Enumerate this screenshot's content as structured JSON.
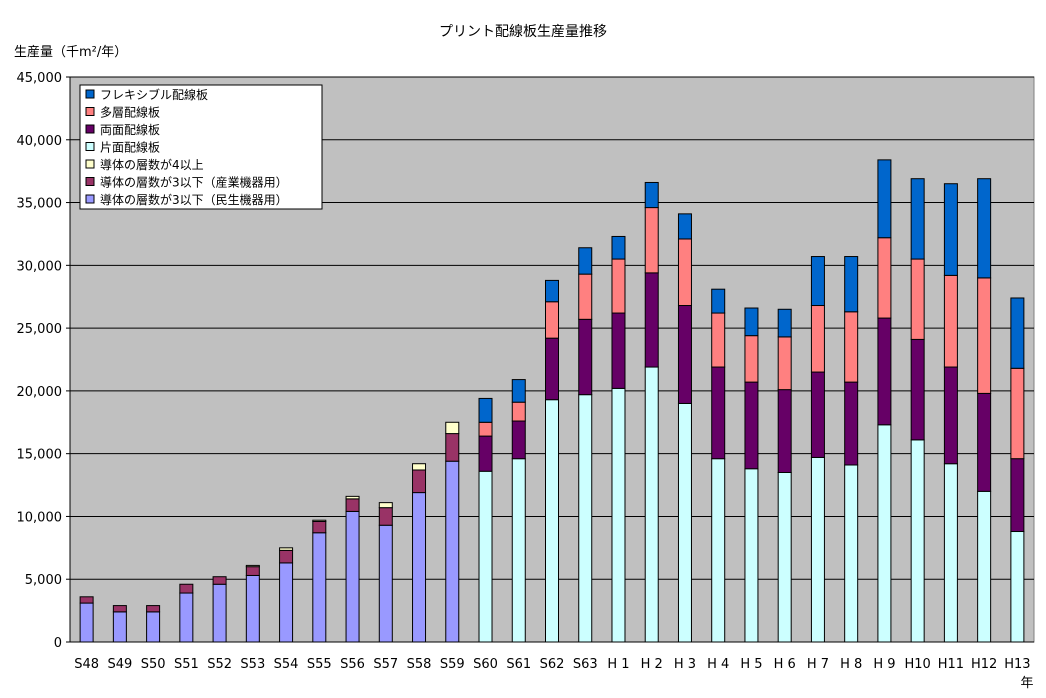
{
  "chart_data": {
    "type": "bar",
    "stacked": true,
    "title": "プリント配線板生産量推移",
    "ylabel": "生産量（千m²/年）",
    "xlabel": "年",
    "ylim": [
      0,
      45000
    ],
    "yticks": [
      0,
      5000,
      10000,
      15000,
      20000,
      25000,
      30000,
      35000,
      40000,
      45000
    ],
    "ytick_labels": [
      "0",
      "5,000",
      "10,000",
      "15,000",
      "20,000",
      "25,000",
      "30,000",
      "35,000",
      "40,000",
      "45,000"
    ],
    "grid": true,
    "legend_position": "top-left",
    "categories": [
      "S48",
      "S49",
      "S50",
      "S51",
      "S52",
      "S53",
      "S54",
      "S55",
      "S56",
      "S57",
      "S58",
      "S59",
      "S60",
      "S61",
      "S62",
      "S63",
      "H 1",
      "H 2",
      "H 3",
      "H 4",
      "H 5",
      "H 6",
      "H 7",
      "H 8",
      "H 9",
      "H10",
      "H11",
      "H12",
      "H13"
    ],
    "series": [
      {
        "name": "導体の層数が3以下(民生機器用)",
        "color": "#9999ff",
        "values": [
          3100,
          2400,
          2400,
          3900,
          4600,
          5300,
          6300,
          8700,
          10400,
          9300,
          11900,
          14400,
          0,
          0,
          0,
          0,
          0,
          0,
          0,
          0,
          0,
          0,
          0,
          0,
          0,
          0,
          0,
          0,
          0
        ]
      },
      {
        "name": "導体の層数が3以下(産業機器用)",
        "color": "#993366",
        "values": [
          500,
          500,
          500,
          700,
          600,
          700,
          1000,
          900,
          1000,
          1400,
          1800,
          2200,
          0,
          0,
          0,
          0,
          0,
          0,
          0,
          0,
          0,
          0,
          0,
          0,
          0,
          0,
          0,
          0,
          0
        ]
      },
      {
        "name": "導体の層数が4以上",
        "color": "#ffffcc",
        "values": [
          0,
          0,
          0,
          0,
          0,
          100,
          200,
          100,
          200,
          400,
          500,
          900,
          0,
          0,
          0,
          0,
          0,
          0,
          0,
          0,
          0,
          0,
          0,
          0,
          0,
          0,
          0,
          0,
          0
        ]
      },
      {
        "name": "片面配線板",
        "color": "#ccffff",
        "values": [
          0,
          0,
          0,
          0,
          0,
          0,
          0,
          0,
          0,
          0,
          0,
          0,
          13600,
          14600,
          19300,
          19700,
          20200,
          21900,
          19000,
          14600,
          13800,
          13500,
          14700,
          14100,
          17300,
          16100,
          14200,
          12000,
          8800
        ]
      },
      {
        "name": "両面配線板",
        "color": "#660066",
        "values": [
          0,
          0,
          0,
          0,
          0,
          0,
          0,
          0,
          0,
          0,
          0,
          0,
          2800,
          3000,
          4900,
          6000,
          6000,
          7500,
          7800,
          7300,
          6900,
          6600,
          6800,
          6600,
          8500,
          8000,
          7700,
          7800,
          5800
        ]
      },
      {
        "name": "多層配線板",
        "color": "#ff8080",
        "values": [
          0,
          0,
          0,
          0,
          0,
          0,
          0,
          0,
          0,
          0,
          0,
          0,
          1100,
          1500,
          2900,
          3600,
          4300,
          5200,
          5300,
          4300,
          3700,
          4200,
          5300,
          5600,
          6400,
          6400,
          7300,
          9200,
          7200
        ]
      },
      {
        "name": "フレキシブル配線板",
        "color": "#0066cc",
        "values": [
          0,
          0,
          0,
          0,
          0,
          0,
          0,
          0,
          0,
          0,
          0,
          0,
          1900,
          1800,
          1700,
          2100,
          1800,
          2000,
          2000,
          1900,
          2200,
          2200,
          3900,
          4400,
          6200,
          6400,
          7300,
          7900,
          5600
        ]
      }
    ],
    "legend_labels": [
      "フレキシブル配線板",
      "多層配線板",
      "両面配線板",
      "片面配線板",
      "導体の層数が4以上",
      "導体の層数が3以下（産業機器用）",
      "導体の層数が3以下（民生機器用）"
    ]
  }
}
